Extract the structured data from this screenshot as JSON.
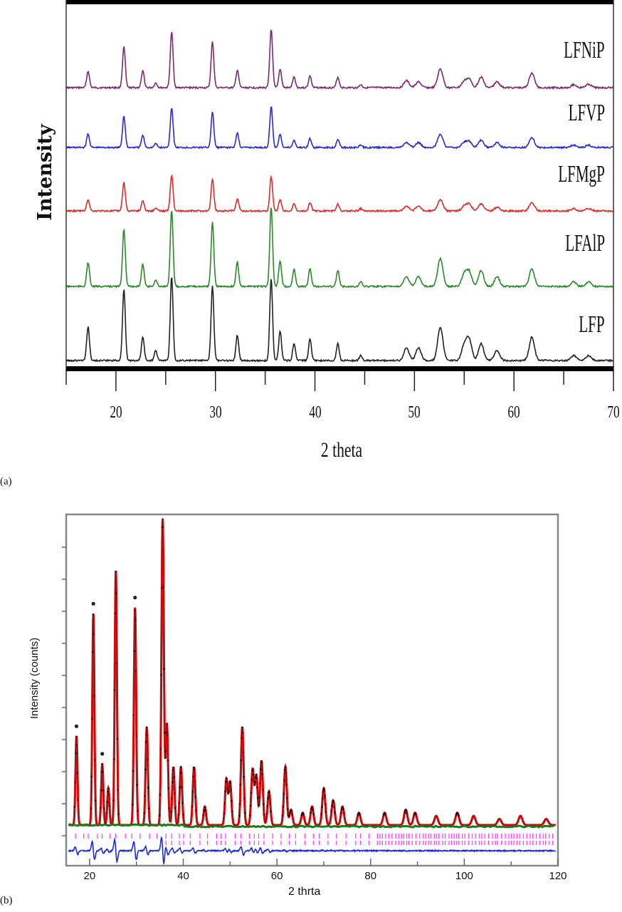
{
  "figure": {
    "panel_a_label": "(a)",
    "panel_b_label": "(b)"
  },
  "colors": {
    "LFNiP": "#7a2a72",
    "LFVP": "#2a2ad0",
    "LFMgP": "#e02a2a",
    "LFAlP": "#2a8a2a",
    "LFP": "#222222",
    "observed": "#e01818",
    "calculated": "#111111",
    "background_fit": "#1a7a1a",
    "bragg_positions": "#ff44ff",
    "difference": "#1a2ae0"
  },
  "chart_data": [
    {
      "id": "a",
      "type": "line",
      "title": "",
      "xlabel": "2 theta",
      "ylabel": "Intensity",
      "xlim": [
        15,
        70
      ],
      "xticks": [
        20,
        30,
        40,
        50,
        60,
        70
      ],
      "grid": false,
      "legend_position": "inline-right",
      "series": [
        {
          "name": "LFNiP",
          "offset": 4
        },
        {
          "name": "LFVP",
          "offset": 3
        },
        {
          "name": "LFMgP",
          "offset": 2
        },
        {
          "name": "LFAlP",
          "offset": 1
        },
        {
          "name": "LFP",
          "offset": 0
        }
      ],
      "peaks": {
        "x": [
          17.2,
          20.8,
          22.7,
          24.0,
          25.6,
          29.7,
          32.2,
          35.6,
          36.5,
          37.9,
          39.5,
          42.3,
          44.6,
          49.2,
          50.4,
          52.6,
          55.0,
          55.5,
          56.7,
          58.3,
          61.8,
          66.0,
          67.5
        ],
        "LFNiP": [
          0.28,
          0.7,
          0.28,
          0.08,
          0.95,
          0.78,
          0.3,
          1.0,
          0.32,
          0.18,
          0.2,
          0.18,
          0.05,
          0.12,
          0.1,
          0.32,
          0.1,
          0.14,
          0.18,
          0.1,
          0.25,
          0.05,
          0.06
        ],
        "LFVP": [
          0.28,
          0.65,
          0.25,
          0.08,
          0.82,
          0.72,
          0.3,
          0.85,
          0.28,
          0.15,
          0.18,
          0.18,
          0.05,
          0.1,
          0.1,
          0.28,
          0.1,
          0.12,
          0.15,
          0.1,
          0.2,
          0.05,
          0.05
        ],
        "LFMgP": [
          0.25,
          0.62,
          0.22,
          0.06,
          0.78,
          0.68,
          0.25,
          0.75,
          0.25,
          0.15,
          0.18,
          0.15,
          0.05,
          0.1,
          0.1,
          0.25,
          0.1,
          0.14,
          0.15,
          0.08,
          0.18,
          0.05,
          0.05
        ],
        "LFAlP": [
          0.3,
          0.72,
          0.28,
          0.08,
          0.95,
          0.8,
          0.3,
          1.0,
          0.32,
          0.22,
          0.22,
          0.2,
          0.06,
          0.12,
          0.12,
          0.35,
          0.15,
          0.18,
          0.2,
          0.12,
          0.22,
          0.06,
          0.06
        ],
        "LFP": [
          0.4,
          0.85,
          0.28,
          0.12,
          1.0,
          0.88,
          0.3,
          0.98,
          0.35,
          0.2,
          0.25,
          0.2,
          0.06,
          0.15,
          0.15,
          0.4,
          0.18,
          0.25,
          0.2,
          0.12,
          0.28,
          0.06,
          0.06
        ]
      }
    },
    {
      "id": "b",
      "type": "scatter",
      "title": "",
      "xlabel": "2 thrta",
      "ylabel": "Intensity (counts)",
      "xlim": [
        15,
        120
      ],
      "xticks": [
        20,
        40,
        60,
        80,
        100,
        120
      ],
      "ytick_labels_visible": false,
      "grid": false,
      "series": [
        {
          "name": "observed",
          "style": "red dots"
        },
        {
          "name": "calculated",
          "style": "black line"
        },
        {
          "name": "background",
          "style": "green line"
        },
        {
          "name": "bragg_positions",
          "style": "magenta ticks"
        },
        {
          "name": "difference",
          "style": "blue line"
        }
      ],
      "peaks": {
        "x": [
          17.2,
          20.8,
          22.7,
          24.0,
          25.6,
          29.7,
          32.2,
          35.6,
          36.5,
          37.9,
          39.5,
          42.3,
          44.6,
          49.2,
          50.0,
          52.6,
          54.8,
          55.6,
          56.7,
          58.3,
          61.8,
          63.0,
          65.5,
          67.5,
          70.0,
          72.0,
          74.0,
          77.5,
          83.0,
          87.5,
          89.5,
          94.0,
          98.5,
          102.0,
          107.5,
          112.0,
          117.5
        ],
        "intensity": [
          0.29,
          0.69,
          0.2,
          0.12,
          0.83,
          0.71,
          0.32,
          1.0,
          0.33,
          0.19,
          0.19,
          0.19,
          0.06,
          0.15,
          0.14,
          0.32,
          0.18,
          0.16,
          0.21,
          0.11,
          0.19,
          0.05,
          0.04,
          0.06,
          0.12,
          0.08,
          0.06,
          0.04,
          0.04,
          0.05,
          0.04,
          0.03,
          0.04,
          0.03,
          0.02,
          0.03,
          0.02
        ]
      },
      "marked_peaks_x": [
        17.2,
        20.8,
        22.7,
        29.7
      ]
    }
  ]
}
